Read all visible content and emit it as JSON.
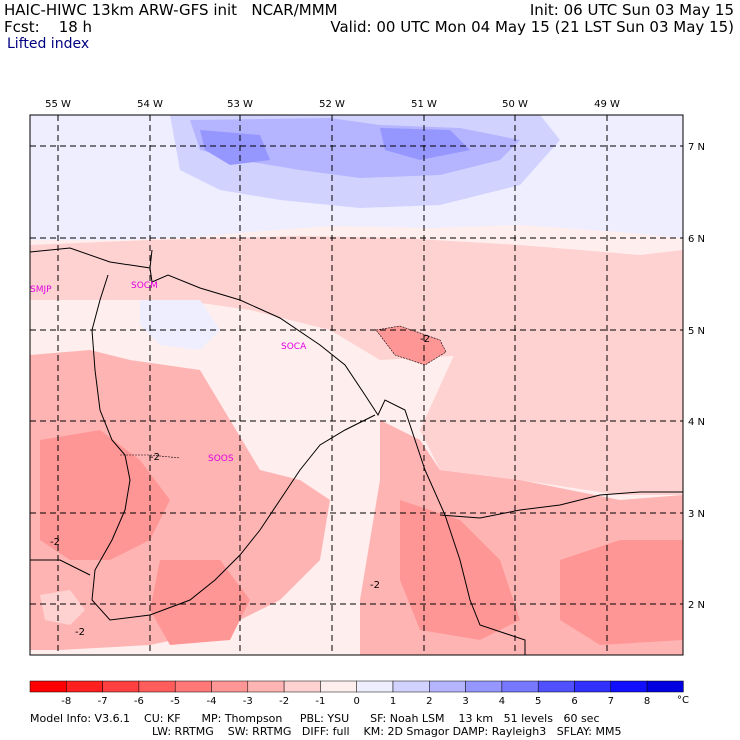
{
  "header": {
    "line1_left": "HAIC-HIWC 13km ARW-GFS init   NCAR/MMM",
    "line2_left": "Fcst:    18 h",
    "line1_right": "Init: 06 UTC Sun 03 May 15",
    "line2_right": "Valid: 00 UTC Mon 04 May 15 (21 LST Sun 03 May 15)",
    "field": "Lifted index"
  },
  "lon_labels": [
    "55 W",
    "54 W",
    "53 W",
    "52 W",
    "51 W",
    "50 W",
    "49 W"
  ],
  "lat_labels": [
    "7 N",
    "6 N",
    "5 N",
    "4 N",
    "3 N",
    "2 N"
  ],
  "stations": [
    "SMJP",
    "SOCM",
    "SOCA",
    "SOOS"
  ],
  "contour_labels": [
    "-2",
    "-2",
    "-2",
    "-2",
    "-2"
  ],
  "colorbar": {
    "values": [
      "-8",
      "-7",
      "-6",
      "-5",
      "-4",
      "-3",
      "-2",
      "-1",
      "0",
      "1",
      "2",
      "3",
      "4",
      "5",
      "6",
      "7",
      "8"
    ],
    "unit": "°C",
    "colors": [
      "#ff0000",
      "#ff2020",
      "#ff4040",
      "#ff5c5c",
      "#ff7878",
      "#ff9696",
      "#ffb4b4",
      "#ffd2d2",
      "#ffeeee",
      "#eeeeff",
      "#d2d2ff",
      "#b4b4ff",
      "#9696ff",
      "#7878ff",
      "#5050ff",
      "#3030ff",
      "#1010ff",
      "#0000e0"
    ]
  },
  "footer": {
    "line1": "Model Info: V3.6.1    CU: KF      MP: Thompson     PBL: YSU      SF: Noah LSM    13 km   51 levels   60 sec",
    "line2": "LW: RRTMG    SW: RRTMG   DIFF: full    KM: 2D Smagor DAMP: Rayleigh3   SFLAY: MM5"
  }
}
